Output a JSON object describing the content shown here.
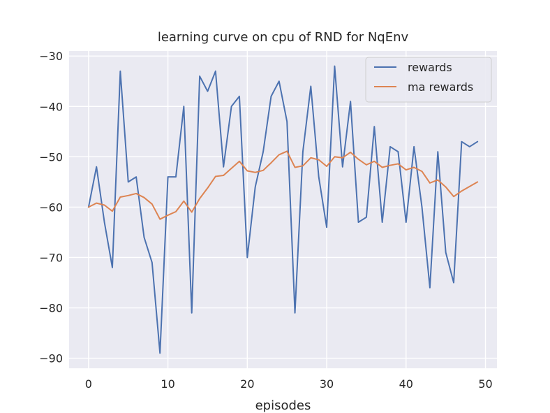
{
  "chart_data": {
    "type": "line",
    "title": "learning curve on cpu of RND for NqEnv",
    "xlabel": "episodes",
    "ylabel": "",
    "xlim": [
      -2.45,
      51.45
    ],
    "ylim": [
      -92,
      -29
    ],
    "xticks": [
      0,
      10,
      20,
      30,
      40,
      50
    ],
    "yticks": [
      -30,
      -40,
      -50,
      -60,
      -70,
      -80,
      -90
    ],
    "grid": true,
    "legend_position": "top-right",
    "x": [
      0,
      1,
      2,
      3,
      4,
      5,
      6,
      7,
      8,
      9,
      10,
      11,
      12,
      13,
      14,
      15,
      16,
      17,
      18,
      19,
      20,
      21,
      22,
      23,
      24,
      25,
      26,
      27,
      28,
      29,
      30,
      31,
      32,
      33,
      34,
      35,
      36,
      37,
      38,
      39,
      40,
      41,
      42,
      43,
      44,
      45,
      46,
      47,
      48,
      49
    ],
    "series": [
      {
        "name": "rewards",
        "color": "#4c72b0",
        "values": [
          -60,
          -52,
          -63,
          -72,
          -33,
          -55,
          -54,
          -66,
          -71,
          -89,
          -54,
          -54,
          -40,
          -81,
          -34,
          -37,
          -33,
          -52,
          -40,
          -38,
          -70,
          -56,
          -49,
          -38,
          -35,
          -43,
          -81,
          -49,
          -36,
          -54,
          -64,
          -32,
          -52,
          -39,
          -63,
          -62,
          -44,
          -63,
          -48,
          -49,
          -63,
          -48,
          -60,
          -76,
          -49,
          -69,
          -75,
          -47,
          -48,
          -47
        ]
      },
      {
        "name": "ma rewards",
        "color": "#dd8452",
        "values": [
          -60,
          -59.2,
          -59.6,
          -60.8,
          -58,
          -57.7,
          -57.3,
          -58.1,
          -59.4,
          -62.4,
          -61.6,
          -60.9,
          -58.8,
          -61,
          -58.3,
          -56.2,
          -53.9,
          -53.7,
          -52.3,
          -50.9,
          -52.8,
          -53.1,
          -52.7,
          -51.2,
          -49.6,
          -48.9,
          -52.1,
          -51.8,
          -50.2,
          -50.6,
          -51.9,
          -50,
          -50.2,
          -49.1,
          -50.5,
          -51.6,
          -50.9,
          -52.1,
          -51.7,
          -51.4,
          -52.6,
          -52.1,
          -52.9,
          -55.2,
          -54.6,
          -56,
          -57.9,
          -56.8,
          -55.9,
          -55
        ]
      }
    ]
  }
}
